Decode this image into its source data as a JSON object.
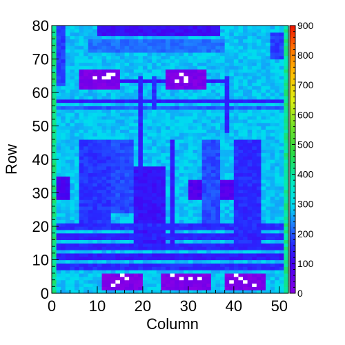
{
  "chart_data": {
    "type": "heatmap",
    "title": "",
    "xlabel": "Column",
    "ylabel": "Row",
    "xlim": [
      0,
      52
    ],
    "ylim": [
      0,
      80
    ],
    "zlim": [
      0,
      900
    ],
    "x_ticks": [
      0,
      10,
      20,
      30,
      40,
      50
    ],
    "y_ticks": [
      0,
      10,
      20,
      30,
      40,
      50,
      60,
      70,
      80
    ],
    "z_ticks": [
      0,
      100,
      200,
      300,
      400,
      500,
      600,
      700,
      800,
      900
    ],
    "grid": false,
    "colormap": "rainbow (purple-blue-cyan-green-yellow-red)",
    "ncols": 52,
    "nrows": 80,
    "background_level": 280,
    "edge_columns": {
      "left": 420,
      "right": 410
    },
    "regions": [
      {
        "label": "top-dark-band",
        "x": [
          10,
          37
        ],
        "y": [
          77,
          80
        ],
        "value": 120
      },
      {
        "label": "top-mid-band",
        "x": [
          8,
          38
        ],
        "y": [
          72,
          76
        ],
        "value": 220
      },
      {
        "label": "top-right-corner",
        "x": [
          48,
          52
        ],
        "y": [
          70,
          78
        ],
        "value": 180
      },
      {
        "label": "top-left-stripe",
        "x": [
          1,
          3
        ],
        "y": [
          62,
          80
        ],
        "value": 180
      },
      {
        "label": "upper-horizontal-line",
        "x": [
          6,
          38
        ],
        "y": [
          63,
          64
        ],
        "value": 130
      },
      {
        "label": "row-57-line",
        "x": [
          1,
          51
        ],
        "y": [
          57,
          58
        ],
        "value": 140
      },
      {
        "label": "row-55-line",
        "x": [
          1,
          51
        ],
        "y": [
          55,
          56
        ],
        "value": 200
      },
      {
        "label": "left-pad-upper",
        "x": [
          6,
          15
        ],
        "y": [
          61,
          67
        ],
        "value": 20
      },
      {
        "label": "right-pad-upper",
        "x": [
          25,
          34
        ],
        "y": [
          61,
          67
        ],
        "value": 20
      },
      {
        "label": "upper-left-vertical",
        "x": [
          19,
          20
        ],
        "y": [
          35,
          65
        ],
        "value": 150
      },
      {
        "label": "upper-mid-vertical",
        "x": [
          22,
          23
        ],
        "y": [
          55,
          65
        ],
        "value": 160
      },
      {
        "label": "upper-right-vertical",
        "x": [
          38,
          39
        ],
        "y": [
          48,
          65
        ],
        "value": 150
      },
      {
        "label": "left-block",
        "x": [
          6,
          13
        ],
        "y": [
          20,
          46
        ],
        "value": 170
      },
      {
        "label": "left-block-2",
        "x": [
          13,
          18
        ],
        "y": [
          24,
          46
        ],
        "value": 190
      },
      {
        "label": "center-left-block",
        "x": [
          18,
          25
        ],
        "y": [
          14,
          38
        ],
        "value": 130
      },
      {
        "label": "center-vertical",
        "x": [
          26,
          27
        ],
        "y": [
          14,
          46
        ],
        "value": 140
      },
      {
        "label": "center-right-column",
        "x": [
          33,
          37
        ],
        "y": [
          20,
          46
        ],
        "value": 190
      },
      {
        "label": "right-block",
        "x": [
          40,
          46
        ],
        "y": [
          14,
          46
        ],
        "value": 160
      },
      {
        "label": "left-small-dark",
        "x": [
          1,
          4
        ],
        "y": [
          28,
          35
        ],
        "value": 100
      },
      {
        "label": "center-small-dark-1",
        "x": [
          30,
          33
        ],
        "y": [
          28,
          34
        ],
        "value": 80
      },
      {
        "label": "center-small-dark-2",
        "x": [
          37,
          40
        ],
        "y": [
          28,
          34
        ],
        "value": 80
      },
      {
        "label": "lower-band-1",
        "x": [
          1,
          51
        ],
        "y": [
          19,
          21
        ],
        "value": 160
      },
      {
        "label": "lower-band-2",
        "x": [
          1,
          51
        ],
        "y": [
          16,
          18
        ],
        "value": 150
      },
      {
        "label": "lower-band-3",
        "x": [
          1,
          51
        ],
        "y": [
          13,
          15
        ],
        "value": 150
      },
      {
        "label": "lower-band-4",
        "x": [
          1,
          51
        ],
        "y": [
          10,
          12
        ],
        "value": 140
      },
      {
        "label": "lower-band-5",
        "x": [
          1,
          51
        ],
        "y": [
          7,
          9
        ],
        "value": 160
      },
      {
        "label": "bottom-left-pad",
        "x": [
          11,
          20
        ],
        "y": [
          1,
          6
        ],
        "value": 15
      },
      {
        "label": "bottom-center-pad",
        "x": [
          24,
          35
        ],
        "y": [
          1,
          6
        ],
        "value": 15
      },
      {
        "label": "bottom-right-pad",
        "x": [
          38,
          47
        ],
        "y": [
          1,
          6
        ],
        "value": 15
      }
    ],
    "white_cells": [
      [
        9,
        64
      ],
      [
        11,
        64
      ],
      [
        12,
        65
      ],
      [
        13,
        65
      ],
      [
        12,
        64
      ],
      [
        28,
        65
      ],
      [
        29,
        64
      ],
      [
        27,
        63
      ],
      [
        29,
        63
      ],
      [
        15,
        5
      ],
      [
        16,
        4
      ],
      [
        14,
        3
      ],
      [
        13,
        2
      ],
      [
        26,
        5
      ],
      [
        28,
        4
      ],
      [
        30,
        4
      ],
      [
        32,
        4
      ],
      [
        40,
        5
      ],
      [
        41,
        4
      ],
      [
        39,
        3
      ],
      [
        42,
        3
      ],
      [
        44,
        2
      ]
    ]
  },
  "colors": {
    "frame": "#000000",
    "background": "#ffffff"
  }
}
